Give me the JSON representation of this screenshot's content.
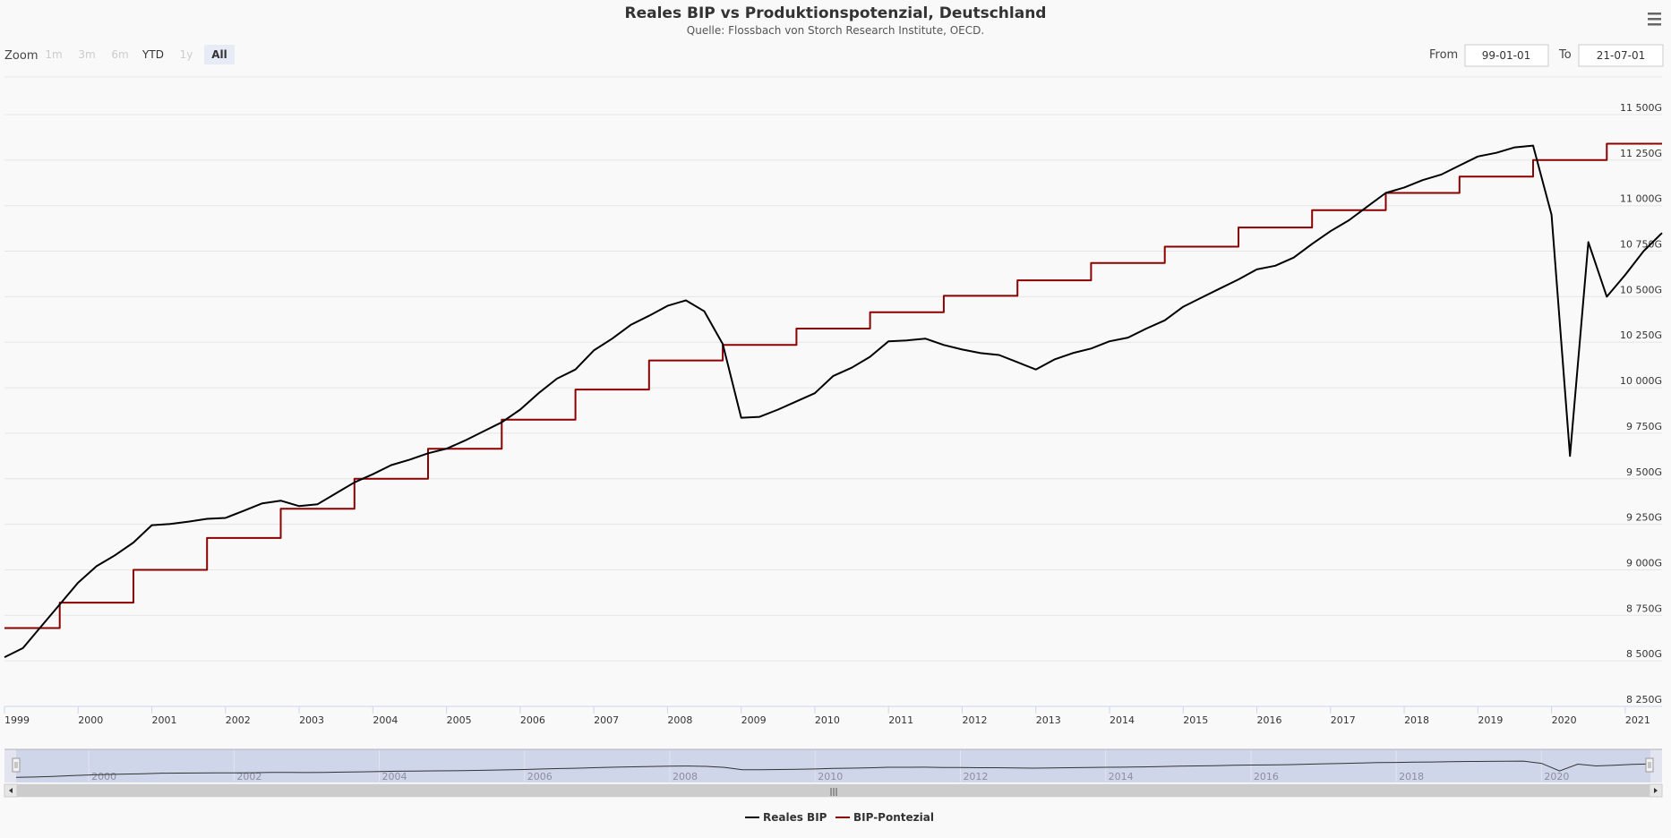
{
  "chart_data": {
    "type": "line",
    "title": "Reales BIP vs Produktionspotenzial, Deutschland",
    "subtitle": "Quelle: Flossbach von Storch Research Institute, OECD.",
    "ylim": [
      8250,
      11500
    ],
    "yticks": [
      "8 250G",
      "8 500G",
      "8 750G",
      "9 000G",
      "9 250G",
      "9 500G",
      "9 750G",
      "10 000G",
      "10 250G",
      "10 500G",
      "10 750G",
      "11 000G",
      "11 250G",
      "11 500G"
    ],
    "ytick_values": [
      8250,
      8500,
      8750,
      9000,
      9250,
      9500,
      9750,
      10000,
      10250,
      10500,
      10750,
      11000,
      11250,
      11500
    ],
    "x_range": [
      1999.0,
      2021.5
    ],
    "xticks": [
      "1999",
      "2000",
      "2001",
      "2002",
      "2003",
      "2004",
      "2005",
      "2006",
      "2007",
      "2008",
      "2009",
      "2010",
      "2011",
      "2012",
      "2013",
      "2014",
      "2015",
      "2016",
      "2017",
      "2018",
      "2019",
      "2020",
      "2021"
    ],
    "grid": true,
    "legend_position": "bottom-center",
    "series": [
      {
        "name": "Reales BIP",
        "color": "#000000",
        "x": [
          1999.0,
          1999.25,
          1999.5,
          1999.75,
          2000.0,
          2000.25,
          2000.5,
          2000.75,
          2001.0,
          2001.25,
          2001.5,
          2001.75,
          2002.0,
          2002.25,
          2002.5,
          2002.75,
          2003.0,
          2003.25,
          2003.5,
          2003.75,
          2004.0,
          2004.25,
          2004.5,
          2004.75,
          2005.0,
          2005.25,
          2005.5,
          2005.75,
          2006.0,
          2006.25,
          2006.5,
          2006.75,
          2007.0,
          2007.25,
          2007.5,
          2007.75,
          2008.0,
          2008.25,
          2008.5,
          2008.75,
          2009.0,
          2009.25,
          2009.5,
          2009.75,
          2010.0,
          2010.25,
          2010.5,
          2010.75,
          2011.0,
          2011.25,
          2011.5,
          2011.75,
          2012.0,
          2012.25,
          2012.5,
          2012.75,
          2013.0,
          2013.25,
          2013.5,
          2013.75,
          2014.0,
          2014.25,
          2014.5,
          2014.75,
          2015.0,
          2015.25,
          2015.5,
          2015.75,
          2016.0,
          2016.25,
          2016.5,
          2016.75,
          2017.0,
          2017.25,
          2017.5,
          2017.75,
          2018.0,
          2018.25,
          2018.5,
          2018.75,
          2019.0,
          2019.25,
          2019.5,
          2019.75,
          2020.0,
          2020.25,
          2020.5,
          2020.75,
          2021.0,
          2021.25,
          2021.5
        ],
        "values": [
          8520,
          8570,
          8690,
          8810,
          8930,
          9020,
          9080,
          9150,
          9245,
          9252,
          9265,
          9280,
          9285,
          9325,
          9365,
          9380,
          9350,
          9360,
          9420,
          9480,
          9525,
          9575,
          9605,
          9640,
          9665,
          9710,
          9760,
          9810,
          9880,
          9970,
          10050,
          10100,
          10205,
          10270,
          10345,
          10395,
          10450,
          10480,
          10420,
          10240,
          9835,
          9840,
          9880,
          9925,
          9970,
          10065,
          10110,
          10170,
          10255,
          10260,
          10270,
          10235,
          10210,
          10190,
          10180,
          10140,
          10100,
          10155,
          10190,
          10215,
          10255,
          10275,
          10325,
          10370,
          10445,
          10495,
          10545,
          10595,
          10650,
          10670,
          10715,
          10790,
          10860,
          10920,
          10995,
          11070,
          11100,
          11140,
          11170,
          11220,
          11270,
          11290,
          11320,
          11330,
          10950,
          9625,
          10800,
          10500,
          10620,
          10750,
          10850
        ]
      },
      {
        "name": "BIP-Pontezial",
        "color": "#8b0000",
        "x": [
          1999.0,
          1999.75,
          1999.75,
          2000.75,
          2000.75,
          2001.75,
          2001.75,
          2002.75,
          2002.75,
          2003.75,
          2003.75,
          2004.75,
          2004.75,
          2005.75,
          2005.75,
          2006.75,
          2006.75,
          2007.75,
          2007.75,
          2008.75,
          2008.75,
          2009.75,
          2009.75,
          2010.75,
          2010.75,
          2011.75,
          2011.75,
          2012.75,
          2012.75,
          2013.75,
          2013.75,
          2014.75,
          2014.75,
          2015.75,
          2015.75,
          2016.75,
          2016.75,
          2017.75,
          2017.75,
          2018.75,
          2018.75,
          2019.75,
          2019.75,
          2020.75,
          2020.75,
          2021.5
        ],
        "values": [
          8680,
          8680,
          8820,
          8820,
          9000,
          9000,
          9175,
          9175,
          9335,
          9335,
          9500,
          9500,
          9665,
          9665,
          9825,
          9825,
          9990,
          9990,
          10150,
          10150,
          10235,
          10235,
          10325,
          10325,
          10415,
          10415,
          10505,
          10505,
          10590,
          10590,
          10685,
          10685,
          10775,
          10775,
          10880,
          10880,
          10975,
          10975,
          11070,
          11070,
          11160,
          11160,
          11250,
          11250,
          11340,
          11340
        ]
      }
    ]
  },
  "ui": {
    "zoom_label": "Zoom",
    "zoom_buttons": [
      {
        "label": "1m",
        "state": "disabled"
      },
      {
        "label": "3m",
        "state": "disabled"
      },
      {
        "label": "6m",
        "state": "disabled"
      },
      {
        "label": "YTD",
        "state": "normal"
      },
      {
        "label": "1y",
        "state": "disabled"
      },
      {
        "label": "All",
        "state": "selected"
      }
    ],
    "from_label": "From",
    "from_value": "99-01-01",
    "to_label": "To",
    "to_value": "21-07-01",
    "navigator_labels": [
      "2000",
      "2002",
      "2004",
      "2006",
      "2008",
      "2010",
      "2012",
      "2014",
      "2016",
      "2018",
      "2020"
    ],
    "menu_icon": "hamburger-menu-icon",
    "scrollbar_grip": "|||"
  }
}
